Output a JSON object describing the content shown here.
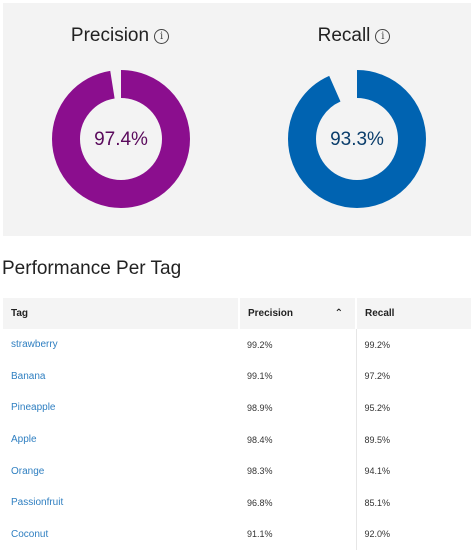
{
  "summary": {
    "precision": {
      "label": "Precision",
      "value_text": "97.4%",
      "fraction": 0.974,
      "color": "#8b0e8e"
    },
    "recall": {
      "label": "Recall",
      "value_text": "93.3%",
      "fraction": 0.933,
      "color": "#0063b1"
    },
    "info_icon": "info-icon"
  },
  "section_title": "Performance Per Tag",
  "table": {
    "headers": {
      "tag": "Tag",
      "precision": "Precision",
      "recall": "Recall"
    },
    "sort_icon": "chevron-up-icon",
    "rows": [
      {
        "tag": "strawberry",
        "precision": "99.2%",
        "recall": "99.2%"
      },
      {
        "tag": "Banana",
        "precision": "99.1%",
        "recall": "97.2%"
      },
      {
        "tag": "Pineapple",
        "precision": "98.9%",
        "recall": "95.2%"
      },
      {
        "tag": "Apple",
        "precision": "98.4%",
        "recall": "89.5%"
      },
      {
        "tag": "Orange",
        "precision": "98.3%",
        "recall": "94.1%"
      },
      {
        "tag": "Passionfruit",
        "precision": "96.8%",
        "recall": "85.1%"
      },
      {
        "tag": "Coconut",
        "precision": "91.1%",
        "recall": "92.0%"
      }
    ]
  }
}
